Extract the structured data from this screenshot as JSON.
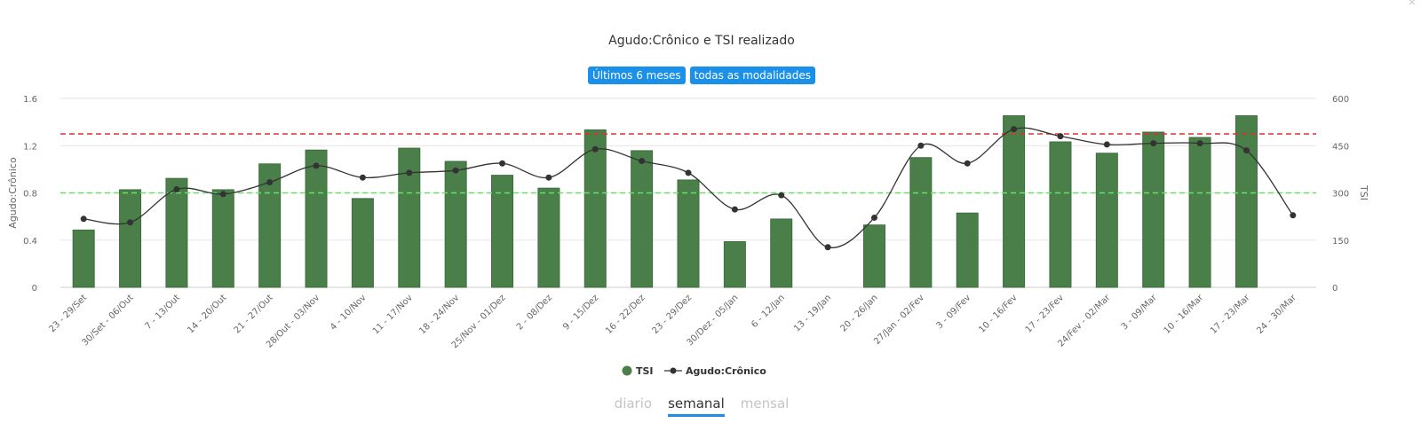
{
  "title": "Agudo:Crônico e TSI realizado",
  "filters": {
    "period": "Últimos 6 meses",
    "modality": "todas as modalidades"
  },
  "tabs": {
    "daily": "diario",
    "weekly": "semanal",
    "monthly": "mensal",
    "active": "semanal"
  },
  "colors": {
    "bar": "#4a7f4a",
    "bar_border": "#3d6e3d",
    "line": "#333333",
    "upper_ref": "#e03030",
    "lower_ref": "#66e066",
    "chip": "#1a90e8"
  },
  "chart_data": {
    "type": "bar",
    "categories": [
      "23 - 29/Set",
      "30/Set - 06/Out",
      "7 - 13/Out",
      "14 - 20/Out",
      "21 - 27/Out",
      "28/Out - 03/Nov",
      "4 - 10/Nov",
      "11 - 17/Nov",
      "18 - 24/Nov",
      "25/Nov - 01/Dez",
      "2 - 08/Dez",
      "9 - 15/Dez",
      "16 - 22/Dez",
      "23 - 29/Dez",
      "30/Dez - 05/Jan",
      "6 - 12/Jan",
      "13 - 19/Jan",
      "20 - 26/Jan",
      "27/Jan - 02/Fev",
      "3 - 09/Fev",
      "10 - 16/Fev",
      "17 - 23/Fev",
      "24/Fev - 02/Mar",
      "3 - 09/Mar",
      "10 - 16/Mar",
      "17 - 23/Mar",
      "24 - 30/Mar"
    ],
    "series": [
      {
        "name": "TSI",
        "type": "bar",
        "axis": "right",
        "values": [
          182,
          310,
          346,
          310,
          392,
          436,
          282,
          442,
          400,
          356,
          315,
          500,
          434,
          341,
          145,
          217,
          null,
          198,
          412,
          236,
          545,
          462,
          426,
          493,
          476,
          545,
          null
        ]
      },
      {
        "name": "Agudo:Crônico",
        "type": "line",
        "axis": "left",
        "values": [
          0.58,
          0.55,
          0.83,
          0.79,
          0.89,
          1.03,
          0.93,
          0.97,
          0.99,
          1.05,
          0.93,
          1.17,
          1.07,
          0.97,
          0.66,
          0.78,
          0.34,
          0.59,
          1.2,
          1.05,
          1.34,
          1.28,
          1.21,
          1.22,
          1.22,
          1.16,
          0.61
        ]
      }
    ],
    "reference_lines": [
      {
        "value": 1.3,
        "axis": "left",
        "style": "dashed-red"
      },
      {
        "value": 0.8,
        "axis": "left",
        "style": "dashed-green"
      }
    ],
    "ylabel": "Agudo:Crônico",
    "y2label": "TSI",
    "ylim": [
      0,
      1.6
    ],
    "yticks": [
      "0",
      "0.4",
      "0.8",
      "1.2",
      "1.6"
    ],
    "y2lim": [
      0,
      600
    ],
    "y2ticks": [
      "0",
      "150",
      "300",
      "450",
      "600"
    ],
    "grid": true,
    "legend": "bottom-center"
  }
}
